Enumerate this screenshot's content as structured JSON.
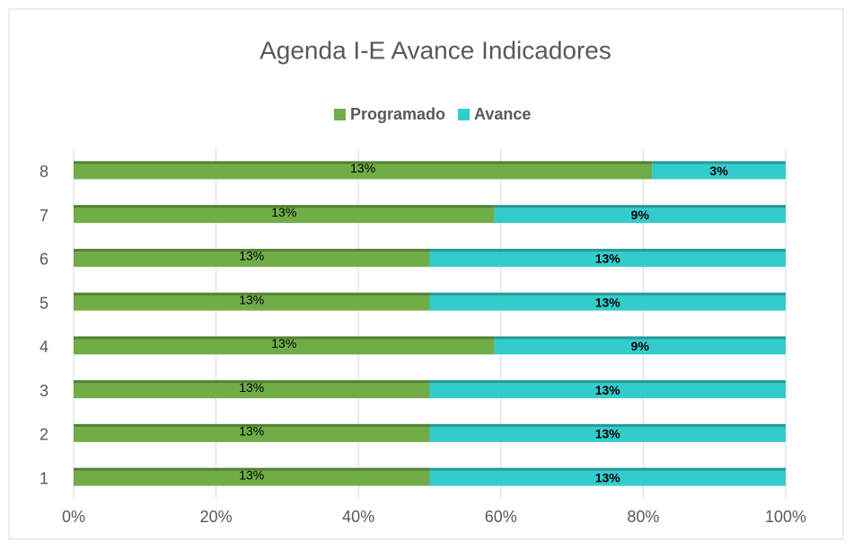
{
  "chart_data": {
    "type": "bar",
    "orientation": "horizontal",
    "stacking": "percent",
    "title": "Agenda I-E Avance Indicadores",
    "categories": [
      "1",
      "2",
      "3",
      "4",
      "5",
      "6",
      "7",
      "8"
    ],
    "series": [
      {
        "name": "Programado",
        "color": "#70ad47",
        "values": [
          13,
          13,
          13,
          13,
          13,
          13,
          13,
          13
        ],
        "value_labels": [
          "13%",
          "13%",
          "13%",
          "13%",
          "13%",
          "13%",
          "13%",
          "13%"
        ]
      },
      {
        "name": "Avance",
        "color": "#33cccc",
        "values": [
          13,
          13,
          13,
          9,
          13,
          13,
          9,
          3
        ],
        "value_labels": [
          "13%",
          "13%",
          "13%",
          "9%",
          "13%",
          "13%",
          "9%",
          "3%"
        ]
      }
    ],
    "xlim": [
      0,
      100
    ],
    "xticks": [
      {
        "value": 0,
        "label": "0%"
      },
      {
        "value": 20,
        "label": "20%"
      },
      {
        "value": 40,
        "label": "40%"
      },
      {
        "value": 60,
        "label": "60%"
      },
      {
        "value": 80,
        "label": "80%"
      },
      {
        "value": 100,
        "label": "100%"
      }
    ],
    "grid": true,
    "legend": "top"
  }
}
